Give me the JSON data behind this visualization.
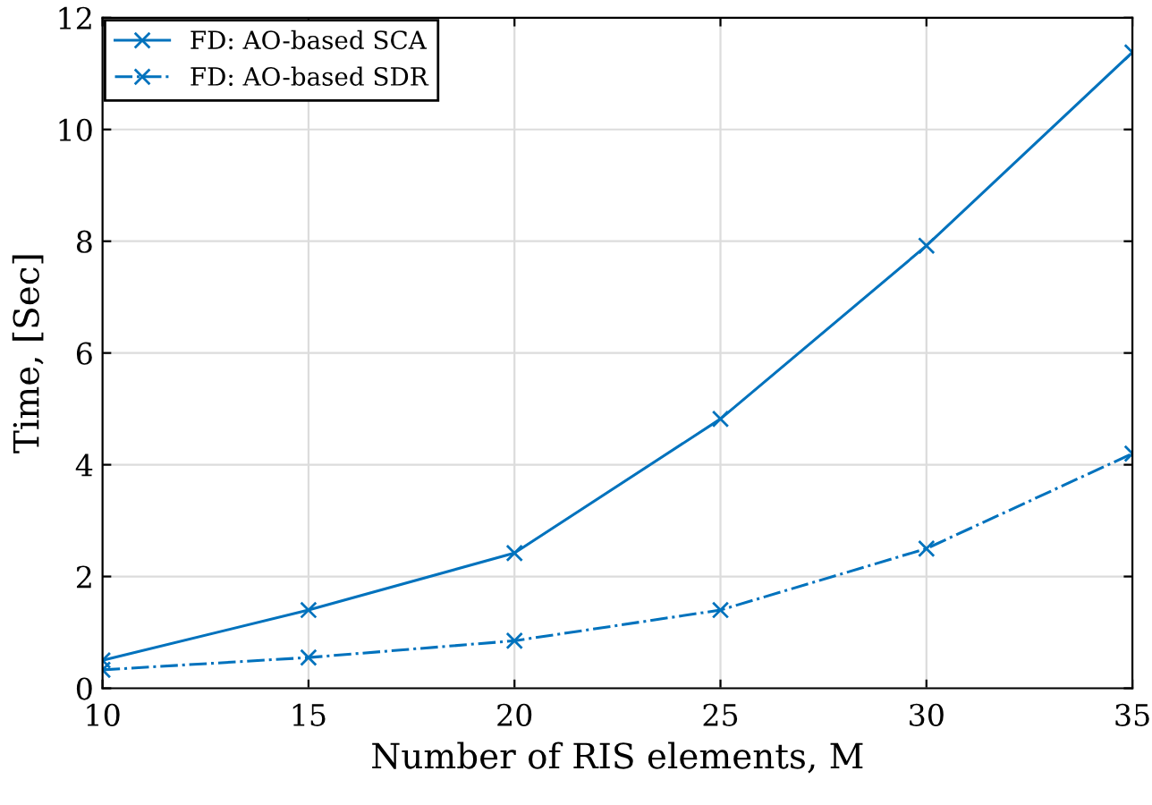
{
  "chart_data": {
    "type": "line",
    "xlabel": "Number of RIS elements, M",
    "ylabel": "Time, [Sec]",
    "x": [
      10,
      15,
      20,
      25,
      30,
      35
    ],
    "series": [
      {
        "name": "FD: AO-based SCA",
        "color": "#0072bd",
        "values": [
          0.5,
          1.4,
          2.42,
          4.82,
          7.92,
          11.38
        ],
        "line_style": "solid"
      },
      {
        "name": "FD: AO-based SDR",
        "color": "#0072bd",
        "values": [
          0.33,
          0.55,
          0.85,
          1.4,
          2.5,
          4.2
        ],
        "line_style": "dashdot"
      }
    ],
    "xlim": [
      10,
      35
    ],
    "xticks": [
      10,
      15,
      20,
      25,
      30,
      35
    ],
    "ylim": [
      0,
      12
    ],
    "yticks": [
      0,
      2,
      4,
      6,
      8,
      10,
      12
    ],
    "grid": true,
    "legend": "top left",
    "marker": "cross"
  }
}
